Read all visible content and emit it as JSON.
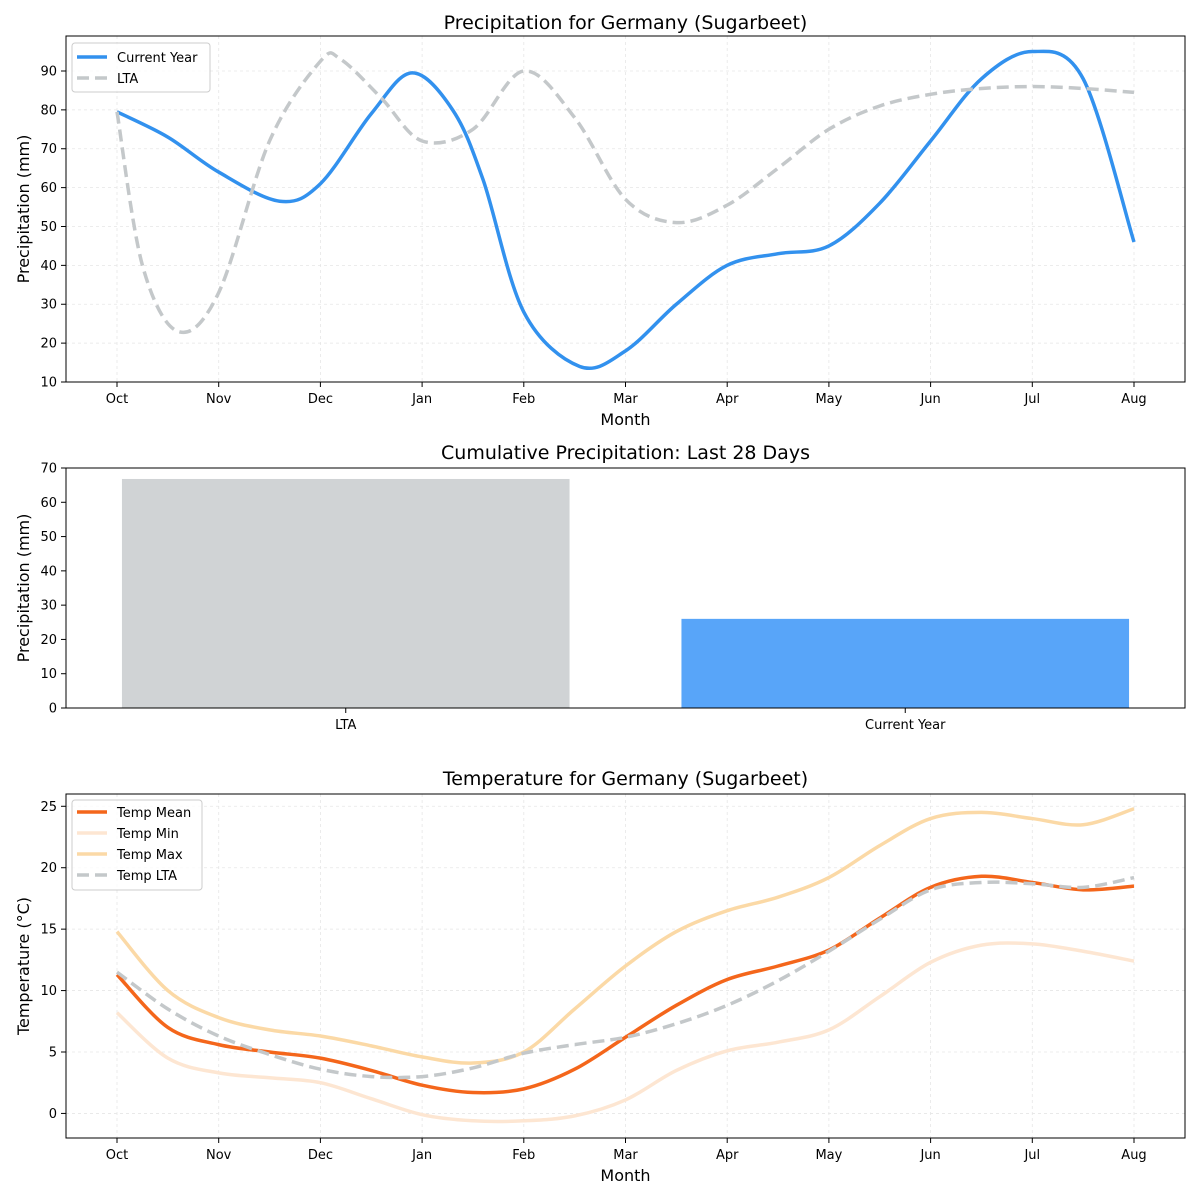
{
  "chart_data": [
    {
      "type": "line",
      "title": "Precipitation for Germany (Sugarbeet)",
      "xlabel": "Month",
      "ylabel": "Precipitation (mm)",
      "categories": [
        "Oct",
        "Nov",
        "Dec",
        "Jan",
        "Feb",
        "Mar",
        "Apr",
        "May",
        "Jun",
        "Jul",
        "Aug"
      ],
      "ylim": [
        10,
        99
      ],
      "yticks": [
        10,
        20,
        30,
        40,
        50,
        60,
        70,
        80,
        90
      ],
      "grid": true,
      "legend": "top-left",
      "series": [
        {
          "name": "Current Year",
          "color": "#3291EE",
          "style": "solid",
          "points": [
            [
              0,
              79.5
            ],
            [
              0.5,
              73
            ],
            [
              1,
              64
            ],
            [
              1.6,
              56.5
            ],
            [
              2,
              61
            ],
            [
              2.5,
              79
            ],
            [
              2.9,
              89.5
            ],
            [
              3.3,
              80
            ],
            [
              3.6,
              62
            ],
            [
              4,
              28
            ],
            [
              4.55,
              14
            ],
            [
              5,
              18
            ],
            [
              5.5,
              30
            ],
            [
              6,
              40
            ],
            [
              6.5,
              43
            ],
            [
              7,
              45
            ],
            [
              7.5,
              56
            ],
            [
              8,
              72
            ],
            [
              8.5,
              88
            ],
            [
              9,
              95
            ],
            [
              9.5,
              88
            ],
            [
              10,
              46
            ]
          ]
        },
        {
          "name": "LTA",
          "color": "#C4C8CA",
          "style": "dashed",
          "points": [
            [
              0,
              79.5
            ],
            [
              0.25,
              40
            ],
            [
              0.6,
              23
            ],
            [
              1,
              33
            ],
            [
              1.5,
              72
            ],
            [
              2,
              92.5
            ],
            [
              2.2,
              93
            ],
            [
              2.6,
              83
            ],
            [
              3,
              72
            ],
            [
              3.5,
              75
            ],
            [
              4,
              90
            ],
            [
              4.5,
              78
            ],
            [
              5,
              57
            ],
            [
              5.5,
              51
            ],
            [
              6,
              55.5
            ],
            [
              6.5,
              65
            ],
            [
              7,
              75
            ],
            [
              7.5,
              81
            ],
            [
              8,
              84
            ],
            [
              8.5,
              85.5
            ],
            [
              9,
              86
            ],
            [
              9.5,
              85.5
            ],
            [
              10,
              84.5
            ]
          ]
        }
      ]
    },
    {
      "type": "bar",
      "title": "Cumulative Precipitation: Last 28 Days",
      "xlabel": "",
      "ylabel": "Precipitation (mm)",
      "categories": [
        "LTA",
        "Current Year"
      ],
      "values": [
        66.8,
        26
      ],
      "colors": [
        "#D0D3D5",
        "#58A5F9"
      ],
      "ylim": [
        0,
        70
      ],
      "yticks": [
        0,
        10,
        20,
        30,
        40,
        50,
        60,
        70
      ]
    },
    {
      "type": "line",
      "title": "Temperature for Germany (Sugarbeet)",
      "xlabel": "Month",
      "ylabel": "Temperature (°C)",
      "categories": [
        "Oct",
        "Nov",
        "Dec",
        "Jan",
        "Feb",
        "Mar",
        "Apr",
        "May",
        "Jun",
        "Jul",
        "Aug"
      ],
      "ylim": [
        -2,
        26
      ],
      "yticks": [
        0,
        5,
        10,
        15,
        20,
        25
      ],
      "grid": true,
      "legend": "top-left",
      "series": [
        {
          "name": "Temp Mean",
          "color": "#F4661B",
          "style": "solid",
          "points": [
            [
              0,
              11.3
            ],
            [
              0.5,
              7
            ],
            [
              1,
              5.6
            ],
            [
              1.5,
              5
            ],
            [
              2,
              4.5
            ],
            [
              2.5,
              3.5
            ],
            [
              3,
              2.3
            ],
            [
              3.5,
              1.7
            ],
            [
              4,
              2
            ],
            [
              4.5,
              3.6
            ],
            [
              5,
              6.2
            ],
            [
              5.5,
              8.8
            ],
            [
              6,
              10.9
            ],
            [
              6.5,
              12
            ],
            [
              7,
              13.3
            ],
            [
              7.5,
              15.9
            ],
            [
              8,
              18.4
            ],
            [
              8.5,
              19.3
            ],
            [
              9,
              18.8
            ],
            [
              9.5,
              18.2
            ],
            [
              10,
              18.5
            ]
          ]
        },
        {
          "name": "Temp Min",
          "color": "#FDE6D2",
          "style": "solid",
          "points": [
            [
              0,
              8.2
            ],
            [
              0.5,
              4.5
            ],
            [
              1,
              3.3
            ],
            [
              1.5,
              2.9
            ],
            [
              2,
              2.5
            ],
            [
              2.5,
              1.2
            ],
            [
              3,
              -0.1
            ],
            [
              3.5,
              -0.6
            ],
            [
              4,
              -0.6
            ],
            [
              4.5,
              -0.2
            ],
            [
              5,
              1.1
            ],
            [
              5.5,
              3.5
            ],
            [
              6,
              5.1
            ],
            [
              6.5,
              5.8
            ],
            [
              7,
              6.8
            ],
            [
              7.5,
              9.5
            ],
            [
              8,
              12.3
            ],
            [
              8.5,
              13.7
            ],
            [
              9,
              13.8
            ],
            [
              9.5,
              13.2
            ],
            [
              10,
              12.4
            ]
          ]
        },
        {
          "name": "Temp Max",
          "color": "#FBD9A6",
          "style": "solid",
          "points": [
            [
              0,
              14.8
            ],
            [
              0.5,
              10
            ],
            [
              1,
              7.8
            ],
            [
              1.5,
              6.8
            ],
            [
              2,
              6.3
            ],
            [
              2.5,
              5.5
            ],
            [
              3,
              4.6
            ],
            [
              3.5,
              4.1
            ],
            [
              4,
              5
            ],
            [
              4.5,
              8.5
            ],
            [
              5,
              12
            ],
            [
              5.5,
              14.8
            ],
            [
              6,
              16.5
            ],
            [
              6.5,
              17.6
            ],
            [
              7,
              19.2
            ],
            [
              7.5,
              21.8
            ],
            [
              8,
              24
            ],
            [
              8.5,
              24.5
            ],
            [
              9,
              24
            ],
            [
              9.5,
              23.5
            ],
            [
              10,
              24.8
            ]
          ]
        },
        {
          "name": "Temp LTA",
          "color": "#C4C8CA",
          "style": "dashed",
          "points": [
            [
              0,
              11.5
            ],
            [
              0.5,
              8.5
            ],
            [
              1,
              6.3
            ],
            [
              1.5,
              4.8
            ],
            [
              2,
              3.6
            ],
            [
              2.5,
              3
            ],
            [
              3,
              3
            ],
            [
              3.5,
              3.7
            ],
            [
              4,
              4.9
            ],
            [
              4.5,
              5.6
            ],
            [
              5,
              6.2
            ],
            [
              5.5,
              7.3
            ],
            [
              6,
              8.8
            ],
            [
              6.5,
              10.8
            ],
            [
              7,
              13.2
            ],
            [
              7.5,
              15.8
            ],
            [
              8,
              18.2
            ],
            [
              8.5,
              18.8
            ],
            [
              9,
              18.7
            ],
            [
              9.5,
              18.4
            ],
            [
              10,
              19.2
            ]
          ]
        }
      ]
    }
  ]
}
